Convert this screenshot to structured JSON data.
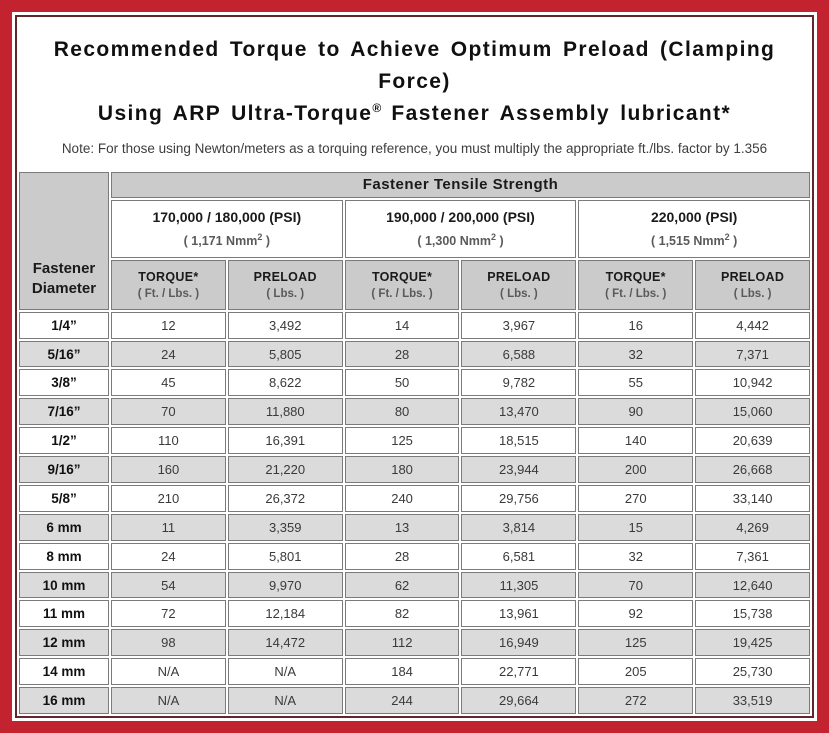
{
  "title": {
    "line1": "Recommended Torque to Achieve Optimum Preload (Clamping Force)",
    "line2_pre": "Using ARP Ultra-Torque",
    "line2_sup": "®",
    "line2_post": " Fastener Assembly lubricant*"
  },
  "note": "Note: For those using Newton/meters as a torquing reference, you must multiply the appropriate ft./lbs. factor by 1.356",
  "table": {
    "diameter_header": "Fastener Diameter",
    "tensile_header": "Fastener Tensile Strength",
    "groups": [
      {
        "psi": "170,000 / 180,000 (PSI)",
        "nmm_pre": "( 1,171 Nmm",
        "nmm_sup": "2",
        "nmm_post": " )",
        "torque_label": "TORQUE*",
        "torque_unit": "( Ft. / Lbs. )",
        "preload_label": "PRELOAD",
        "preload_unit": "( Lbs. )"
      },
      {
        "psi": "190,000 / 200,000 (PSI)",
        "nmm_pre": "( 1,300 Nmm",
        "nmm_sup": "2",
        "nmm_post": " )",
        "torque_label": "TORQUE*",
        "torque_unit": "( Ft. / Lbs. )",
        "preload_label": "PRELOAD",
        "preload_unit": "( Lbs. )"
      },
      {
        "psi": "220,000 (PSI)",
        "nmm_pre": "( 1,515 Nmm",
        "nmm_sup": "2",
        "nmm_post": " )",
        "torque_label": "TORQUE*",
        "torque_unit": "( Ft. / Lbs. )",
        "preload_label": "PRELOAD",
        "preload_unit": "( Lbs. )"
      }
    ],
    "rows": [
      {
        "diameter": "1/4”",
        "values": [
          "12",
          "3,492",
          "14",
          "3,967",
          "16",
          "4,442"
        ]
      },
      {
        "diameter": "5/16”",
        "values": [
          "24",
          "5,805",
          "28",
          "6,588",
          "32",
          "7,371"
        ]
      },
      {
        "diameter": "3/8”",
        "values": [
          "45",
          "8,622",
          "50",
          "9,782",
          "55",
          "10,942"
        ]
      },
      {
        "diameter": "7/16”",
        "values": [
          "70",
          "11,880",
          "80",
          "13,470",
          "90",
          "15,060"
        ]
      },
      {
        "diameter": "1/2”",
        "values": [
          "110",
          "16,391",
          "125",
          "18,515",
          "140",
          "20,639"
        ]
      },
      {
        "diameter": "9/16”",
        "values": [
          "160",
          "21,220",
          "180",
          "23,944",
          "200",
          "26,668"
        ]
      },
      {
        "diameter": "5/8”",
        "values": [
          "210",
          "26,372",
          "240",
          "29,756",
          "270",
          "33,140"
        ]
      },
      {
        "diameter": "6 mm",
        "values": [
          "11",
          "3,359",
          "13",
          "3,814",
          "15",
          "4,269"
        ]
      },
      {
        "diameter": "8 mm",
        "values": [
          "24",
          "5,801",
          "28",
          "6,581",
          "32",
          "7,361"
        ]
      },
      {
        "diameter": "10 mm",
        "values": [
          "54",
          "9,970",
          "62",
          "11,305",
          "70",
          "12,640"
        ]
      },
      {
        "diameter": "11 mm",
        "values": [
          "72",
          "12,184",
          "82",
          "13,961",
          "92",
          "15,738"
        ]
      },
      {
        "diameter": "12 mm",
        "values": [
          "98",
          "14,472",
          "112",
          "16,949",
          "125",
          "19,425"
        ]
      },
      {
        "diameter": "14 mm",
        "values": [
          "N/A",
          "N/A",
          "184",
          "22,771",
          "205",
          "25,730"
        ]
      },
      {
        "diameter": "16 mm",
        "values": [
          "N/A",
          "N/A",
          "244",
          "29,664",
          "272",
          "33,519"
        ]
      }
    ]
  },
  "colors": {
    "frame_red": "#c3232e",
    "frame_inner_line": "#63262b",
    "header_gray": "#cbcbcb",
    "alt_row_gray": "#dbdbdb",
    "cell_border": "#7b7b7b"
  }
}
